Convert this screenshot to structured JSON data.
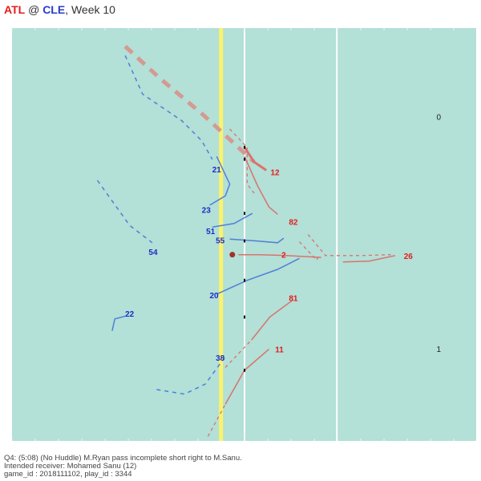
{
  "header": {
    "away": "ATL",
    "at": "@",
    "home": "CLE",
    "week": ", Week 10"
  },
  "colors": {
    "field": "#b3e0d7",
    "los": "#fbf36a",
    "yard_line": "#ffffff",
    "offense": "#d8736d",
    "offense_label": "#e31d1d",
    "defense": "#4f7fd9",
    "defense_label": "#1d2bc8",
    "ball": "#a3302b",
    "thick_route": "#d49a92"
  },
  "caption": {
    "line1": "Q4: (5:08) (No Huddle) M.Ryan pass incomplete short right to M.Sanu.",
    "line2": "Intended receiver: Mohamed Sanu (12)",
    "line3": "game_id : 2018111102, play_id : 3344"
  },
  "chart_data": {
    "type": "scatter",
    "title": "ATL @ CLE, Week 10",
    "xlim": [
      0,
      53.3
    ],
    "ylim": [
      0,
      45
    ],
    "line_of_scrimmage": 24,
    "yard_lines": [
      26.7,
      37.3
    ],
    "hash_marks": [
      {
        "label": "0",
        "x": 49,
        "y": 35
      },
      {
        "label": "1",
        "x": 49,
        "y": 9.7
      }
    ],
    "ball": {
      "x": 25.3,
      "y": 20.3
    },
    "players": [
      {
        "team": "offense",
        "jersey": "12",
        "target": true,
        "dashed": false,
        "label": [
          30.2,
          29.3
        ],
        "route": [
          [
            26.7,
            32
          ],
          [
            27.8,
            30.4
          ],
          [
            29.2,
            29.5
          ]
        ],
        "pre": [
          [
            13,
            43
          ],
          [
            17,
            39.5
          ],
          [
            22,
            35.5
          ],
          [
            27.8,
            30.4
          ]
        ]
      },
      {
        "team": "offense",
        "jersey": "82",
        "dashed": false,
        "label": [
          32.3,
          23.9
        ],
        "route": [
          [
            26.7,
            31
          ],
          [
            28.2,
            27.8
          ],
          [
            29.5,
            25.5
          ],
          [
            30.5,
            24.7
          ]
        ],
        "pre": [
          [
            25,
            34
          ],
          [
            27,
            32
          ],
          [
            27,
            28
          ],
          [
            27.8,
            27
          ]
        ]
      },
      {
        "team": "offense",
        "jersey": "81",
        "dashed": false,
        "label": [
          32.3,
          15.6
        ],
        "route": [
          [
            27.5,
            11
          ],
          [
            29.6,
            13.5
          ],
          [
            32.3,
            15.4
          ]
        ],
        "pre": [
          [
            24.5,
            8
          ],
          [
            27.5,
            11
          ]
        ]
      },
      {
        "team": "offense",
        "jersey": "11",
        "dashed": false,
        "label": [
          30.7,
          10
        ],
        "route": [
          [
            24.5,
            4
          ],
          [
            26.7,
            7.7
          ],
          [
            29.5,
            10
          ]
        ],
        "pre": [
          [
            22.5,
            0.5
          ],
          [
            24.5,
            4
          ]
        ]
      },
      {
        "team": "offense",
        "jersey": "2",
        "dashed": false,
        "label": [
          31.2,
          20.3
        ],
        "route": [
          [
            26,
            20.3
          ],
          [
            28.5,
            20.3
          ],
          [
            31.5,
            20.2
          ],
          [
            35.5,
            20
          ]
        ],
        "pre": [
          [
            33,
            21.7
          ],
          [
            35,
            19.7
          ],
          [
            35.2,
            20.2
          ]
        ]
      },
      {
        "team": "offense",
        "jersey": "26",
        "dashed": false,
        "label": [
          45.5,
          20.2
        ],
        "route": [
          [
            38,
            19.5
          ],
          [
            41,
            19.6
          ],
          [
            44,
            20.2
          ]
        ],
        "pre": [
          [
            34,
            22.5
          ],
          [
            36,
            20.2
          ],
          [
            40,
            20.2
          ],
          [
            43.5,
            20.3
          ]
        ]
      },
      {
        "team": "defense",
        "jersey": "21",
        "dashed": true,
        "label": [
          23.5,
          29.6
        ],
        "route": [
          [
            13,
            42
          ],
          [
            15,
            37.8
          ],
          [
            19.5,
            34.9
          ],
          [
            21.8,
            32.7
          ],
          [
            23,
            30.7
          ]
        ],
        "pre": []
      },
      {
        "team": "defense",
        "jersey": "23",
        "dashed": false,
        "label": [
          22.3,
          25.2
        ],
        "route": [
          [
            22.7,
            25.7
          ],
          [
            24.5,
            26.7
          ],
          [
            25,
            28
          ],
          [
            23.5,
            31
          ]
        ],
        "pre": []
      },
      {
        "team": "defense",
        "jersey": "51",
        "dashed": false,
        "label": [
          22.8,
          22.9
        ],
        "route": [
          [
            23,
            23.3
          ],
          [
            25.5,
            23.7
          ],
          [
            27.6,
            24.8
          ]
        ],
        "pre": []
      },
      {
        "team": "defense",
        "jersey": "55",
        "dashed": false,
        "label": [
          23.9,
          21.9
        ],
        "route": [
          [
            25,
            22
          ],
          [
            28,
            21.8
          ],
          [
            30.5,
            21.6
          ],
          [
            31.2,
            22.1
          ]
        ],
        "pre": []
      },
      {
        "team": "defense",
        "jersey": "54",
        "dashed": true,
        "label": [
          16.2,
          20.6
        ],
        "route": [
          [
            9.8,
            28.4
          ],
          [
            13.5,
            23.5
          ],
          [
            16.1,
            21.6
          ]
        ],
        "pre": []
      },
      {
        "team": "defense",
        "jersey": "20",
        "dashed": false,
        "label": [
          23.2,
          15.9
        ],
        "route": [
          [
            23.5,
            16
          ],
          [
            27,
            17.5
          ],
          [
            30.5,
            18.7
          ],
          [
            33,
            19.9
          ]
        ],
        "pre": []
      },
      {
        "team": "defense",
        "jersey": "22",
        "dashed": false,
        "label": [
          13.5,
          13.9
        ],
        "route": [
          [
            11.5,
            12
          ],
          [
            11.8,
            13.3
          ],
          [
            13,
            13.6
          ]
        ],
        "pre": []
      },
      {
        "team": "defense",
        "jersey": "38",
        "dashed": true,
        "label": [
          23.9,
          9.1
        ],
        "route": [
          [
            16.6,
            5.6
          ],
          [
            19.8,
            5.1
          ],
          [
            22.2,
            6.2
          ],
          [
            24.5,
            9.2
          ]
        ],
        "pre": []
      }
    ]
  }
}
